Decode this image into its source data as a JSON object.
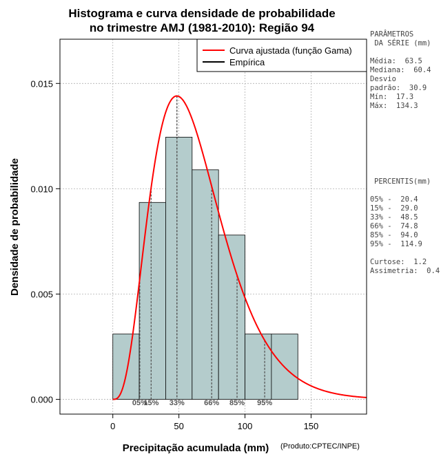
{
  "title_lines": [
    "Histograma e curva densidade de probabilidade",
    "no trimestre AMJ (1981-2010): Região 94"
  ],
  "credit": "(Produto:CPTEC/INPE)",
  "side_panel": {
    "params_heading": [
      "PARÂMETROS",
      " DA SÉRIE (mm)"
    ],
    "params": [
      "Média:  63.5",
      "Mediana:  60.4",
      "Desvio",
      "padrão:  30.9",
      "Mín:  17.3",
      "Máx:  134.3"
    ],
    "percentis_heading": "PERCENTIS(mm)",
    "percentis": [
      "05% -  20.4",
      "15% -  29.0",
      "33% -  48.5",
      "66% -  74.8",
      "85% -  94.0",
      "95% -  114.9"
    ],
    "stats": [
      "Curtose:  1.2",
      "Assimetria:  0.4"
    ]
  },
  "chart_data": {
    "type": "bar",
    "title": "Histograma e curva densidade de probabilidade no trimestre AMJ (1981-2010): Região 94",
    "xlabel": "Precipitação acumulada (mm)",
    "ylabel": "Densidade de probabilidade",
    "xlim": [
      -40,
      192
    ],
    "ylim": [
      -0.0007,
      0.0171
    ],
    "grid": true,
    "legend_position": "top-right",
    "x_ticks": [
      0,
      50,
      100,
      150
    ],
    "y_ticks": [
      0.0,
      0.005,
      0.01,
      0.015
    ],
    "y_tick_labels": [
      "0.000",
      "0.005",
      "0.010",
      "0.015"
    ],
    "bins": [
      {
        "from": 0,
        "to": 20,
        "density": 0.0031
      },
      {
        "from": 20,
        "to": 40,
        "density": 0.00935
      },
      {
        "from": 40,
        "to": 60,
        "density": 0.01245
      },
      {
        "from": 60,
        "to": 80,
        "density": 0.0109
      },
      {
        "from": 80,
        "to": 100,
        "density": 0.0078
      },
      {
        "from": 100,
        "to": 120,
        "density": 0.0031
      },
      {
        "from": 120,
        "to": 140,
        "density": 0.0031
      }
    ],
    "series": [
      {
        "name": "Curva ajustada (função Gama)",
        "color": "#ff0000"
      },
      {
        "name": "Empírica",
        "color": "#000000"
      }
    ],
    "gamma_fit": {
      "shape": 4.22,
      "scale": 15.04
    },
    "mode_line_x": 48.5,
    "percentile_markers": [
      {
        "label": "05%",
        "x": 20.4
      },
      {
        "label": "15%",
        "x": 29.0
      },
      {
        "label": "33%",
        "x": 48.5
      },
      {
        "label": "66%",
        "x": 74.8
      },
      {
        "label": "85%",
        "x": 94.0
      },
      {
        "label": "95%",
        "x": 114.9
      }
    ],
    "bar_color": "#b4cccc"
  }
}
